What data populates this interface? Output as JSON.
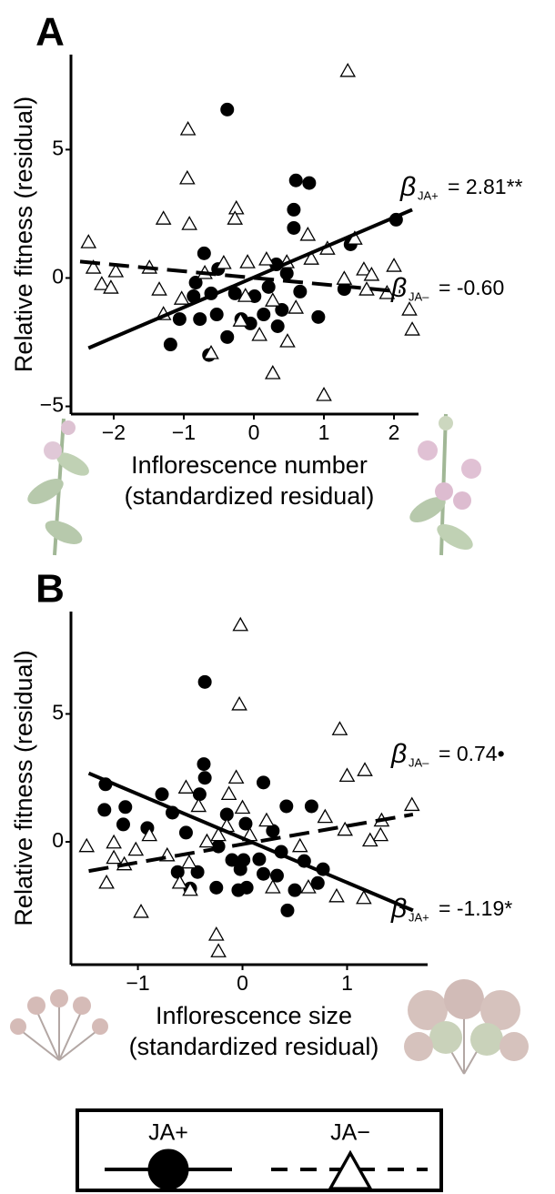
{
  "chart_data": [
    {
      "type": "scatter",
      "panel_label": "A",
      "ylabel": "Relative fitness (residual)",
      "xlabel": [
        "Inflorescence number",
        "(standardized residual)"
      ],
      "xlim": [
        -2.61,
        2.35
      ],
      "ylim": [
        -5.3,
        8.7
      ],
      "xticks": [
        {
          "value": -2,
          "label": "−2"
        },
        {
          "value": -1,
          "label": "−1"
        },
        0,
        1,
        2
      ],
      "yticks": [
        {
          "value": -5,
          "label": "−5"
        },
        0,
        5
      ],
      "series": [
        {
          "name": "JA+",
          "marker": "circle",
          "color": "#000000",
          "line_style": "solid",
          "x": [
            -0.38,
            0.6,
            0.79,
            0.57,
            2.03,
            1.38,
            0.57,
            -0.71,
            0.32,
            0.47,
            -0.51,
            -0.83,
            -0.61,
            -0.27,
            0.01,
            0.21,
            -0.86,
            -1.06,
            -0.77,
            -0.53,
            -0.18,
            0.14,
            0.4,
            0.66,
            0.92,
            1.29,
            -1.19,
            -0.64,
            -0.38,
            -0.05,
            0.34
          ],
          "values": [
            6.56,
            3.8,
            3.7,
            2.66,
            2.27,
            1.31,
            1.95,
            0.96,
            0.53,
            0.18,
            0.35,
            -0.18,
            -0.6,
            -0.6,
            -0.71,
            -0.35,
            -0.71,
            -1.6,
            -1.6,
            -1.42,
            -1.6,
            -1.42,
            -1.24,
            -0.53,
            -1.52,
            -0.43,
            -2.59,
            -3.0,
            -2.3,
            -1.77,
            -1.88
          ],
          "fit": {
            "x": [
              -2.36,
              2.26
            ],
            "y": [
              -2.73,
              2.66
            ]
          }
        },
        {
          "name": "JA−",
          "marker": "triangle",
          "color": "#000000",
          "line_style": "dashed",
          "x": [
            1.34,
            -0.94,
            -0.95,
            -1.29,
            -0.92,
            -0.25,
            -0.27,
            -2.36,
            -2.29,
            -1.97,
            -2.17,
            -2.04,
            -1.49,
            -1.35,
            -0.43,
            -0.09,
            0.18,
            0.47,
            0.77,
            1.05,
            0.82,
            1.44,
            1.29,
            1.57,
            1.68,
            1.61,
            1.9,
            2.0,
            2.22,
            2.26,
            -1.29,
            -1.03,
            -0.7,
            -0.19,
            0.08,
            0.48,
            0.27,
            1.0,
            -0.61,
            -0.12,
            0.6,
            0.27
          ],
          "values": [
            8.05,
            5.78,
            3.87,
            2.3,
            2.09,
            2.7,
            2.3,
            1.38,
            0.39,
            0.25,
            -0.25,
            -0.39,
            0.39,
            -0.46,
            0.57,
            0.6,
            0.71,
            0.6,
            1.67,
            1.13,
            0.74,
            1.52,
            -0.04,
            0.32,
            0.11,
            -0.46,
            -0.6,
            0.46,
            -1.24,
            -2.02,
            -1.42,
            -0.82,
            0.18,
            -1.67,
            -2.23,
            -2.48,
            -3.72,
            -4.57,
            -2.94,
            -0.71,
            -1.17,
            -0.89
          ],
          "fit": {
            "x": [
              -2.48,
              2.09
            ],
            "y": [
              0.64,
              -0.53
            ]
          }
        }
      ],
      "annotations": [
        {
          "symbol": "β",
          "subscript": "JA+",
          "text": "= 2.81**"
        },
        {
          "symbol": "β",
          "subscript": "JA–",
          "text": "= -0.60"
        }
      ]
    },
    {
      "type": "scatter",
      "panel_label": "B",
      "ylabel": "Relative fitness (residual)",
      "xlabel": [
        "Inflorescence size",
        "(standardized residual)"
      ],
      "xlim": [
        -1.64,
        1.77
      ],
      "ylim": [
        -4.8,
        9.0
      ],
      "xticks": [
        {
          "value": -1,
          "label": "−1"
        },
        0,
        1
      ],
      "yticks": [
        0,
        5
      ],
      "series": [
        {
          "name": "JA+",
          "marker": "circle",
          "color": "#000000",
          "line_style": "solid",
          "x": [
            -0.36,
            -0.37,
            -0.36,
            0.2,
            -0.77,
            -0.41,
            -1.31,
            -1.12,
            -1.32,
            -0.67,
            0.42,
            0.66,
            -0.91,
            -1.14,
            -0.15,
            0.29,
            0.03,
            -0.54,
            -0.23,
            -0.1,
            0.01,
            0.16,
            0.37,
            0.59,
            0.77,
            0.72,
            0.5,
            0.33,
            0.2,
            0.04,
            -0.04,
            -0.25,
            -0.43,
            -0.62,
            -0.5,
            0.43,
            -0.02
          ],
          "values": [
            6.25,
            3.04,
            2.5,
            2.32,
            1.86,
            1.86,
            2.25,
            1.36,
            1.25,
            1.14,
            1.39,
            1.39,
            0.54,
            0.68,
            1.07,
            0.43,
            0.71,
            0.36,
            -0.18,
            -0.71,
            -0.71,
            -0.68,
            -0.39,
            -0.75,
            -1.07,
            -1.61,
            -1.89,
            -1.32,
            -1.25,
            -1.79,
            -1.89,
            -1.79,
            -1.18,
            -1.18,
            -1.82,
            -2.68,
            -1.07
          ],
          "fit": {
            "x": [
              -1.47,
              1.63
            ],
            "y": [
              2.68,
              -2.68
            ]
          }
        },
        {
          "name": "JA−",
          "marker": "triangle",
          "color": "#000000",
          "line_style": "dashed",
          "x": [
            -0.02,
            -0.03,
            0.93,
            1.0,
            1.17,
            -0.06,
            -0.13,
            0,
            -0.54,
            -0.42,
            1.62,
            0.79,
            1.33,
            1.32,
            1.22,
            0.23,
            0.07,
            -0.15,
            -0.23,
            -0.34,
            -1.49,
            -1.23,
            -1.23,
            -1.3,
            -0.89,
            -1.02,
            -1.13,
            -0.72,
            -0.51,
            -0.6,
            -0.5,
            -0.97,
            -0.25,
            -0.23,
            0.29,
            0.63,
            0.9,
            1.16,
            0.55,
            0.98
          ],
          "values": [
            8.46,
            5.36,
            4.39,
            2.57,
            2.79,
            2.5,
            1.86,
            1.32,
            2.11,
            1.39,
            1.43,
            0.96,
            0.82,
            0.25,
            0.04,
            0.82,
            0.25,
            0.61,
            0.25,
            0,
            -0.18,
            -0.04,
            -0.64,
            -1.61,
            0.25,
            -0.32,
            -0.89,
            -0.54,
            -0.82,
            -1.61,
            -1.89,
            -2.75,
            -3.64,
            -4.29,
            -1.79,
            -1.79,
            -2.14,
            -2.21,
            -0.18,
            0.46
          ],
          "fit": {
            "x": [
              -1.47,
              1.63
            ],
            "y": [
              -1.14,
              1.07
            ]
          }
        }
      ],
      "annotations": [
        {
          "symbol": "β",
          "subscript": "JA–",
          "text": "= 0.74•"
        },
        {
          "symbol": "β",
          "subscript": "JA+",
          "text": "= -1.19*"
        }
      ]
    }
  ]
}
